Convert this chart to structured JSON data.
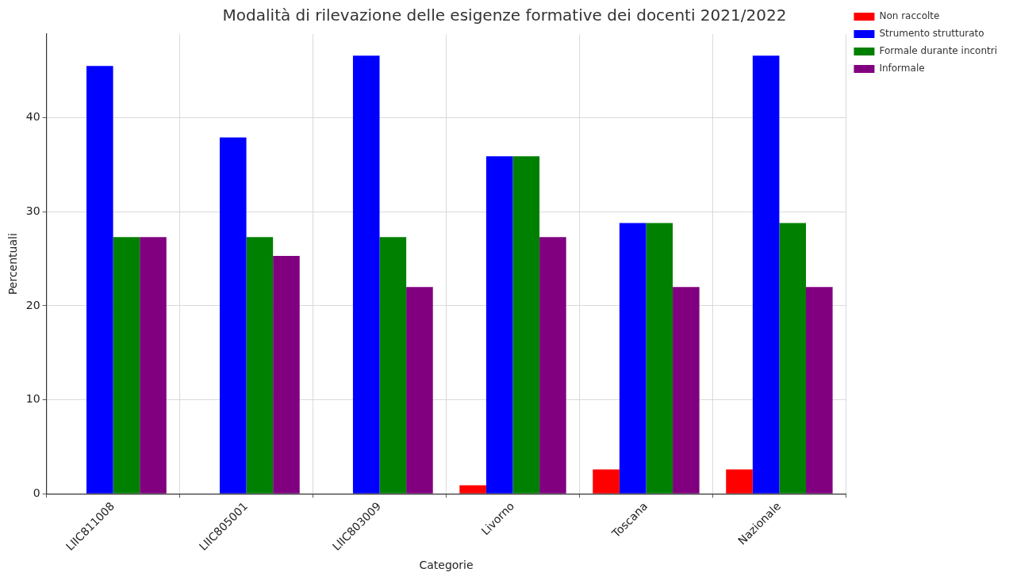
{
  "chart_data": {
    "type": "bar",
    "title": "Modalità di rilevazione delle esigenze formative dei docenti 2021/2022",
    "xlabel": "Categorie",
    "ylabel": "Percentuali",
    "categories": [
      "LIIC811008",
      "LIIC805001",
      "LIIC803009",
      "Livorno",
      "Toscana",
      "Nazionale"
    ],
    "series": [
      {
        "name": "Non raccolte",
        "color": "#ff0000",
        "values": [
          0,
          0,
          0,
          0.9,
          2.6,
          2.6
        ]
      },
      {
        "name": "Strumento strutturato",
        "color": "#0000ff",
        "values": [
          45.5,
          37.9,
          46.6,
          35.9,
          28.8,
          46.6
        ]
      },
      {
        "name": "Formale durante incontri",
        "color": "#008000",
        "values": [
          27.3,
          27.3,
          27.3,
          35.9,
          28.8,
          28.8
        ]
      },
      {
        "name": "Informale",
        "color": "#800080",
        "values": [
          27.3,
          25.3,
          22.0,
          27.3,
          22.0,
          22.0
        ]
      }
    ],
    "ylim": [
      0,
      48.9
    ],
    "yticks": [
      0,
      10,
      20,
      30,
      40
    ],
    "grid": true,
    "legend": "top right"
  }
}
